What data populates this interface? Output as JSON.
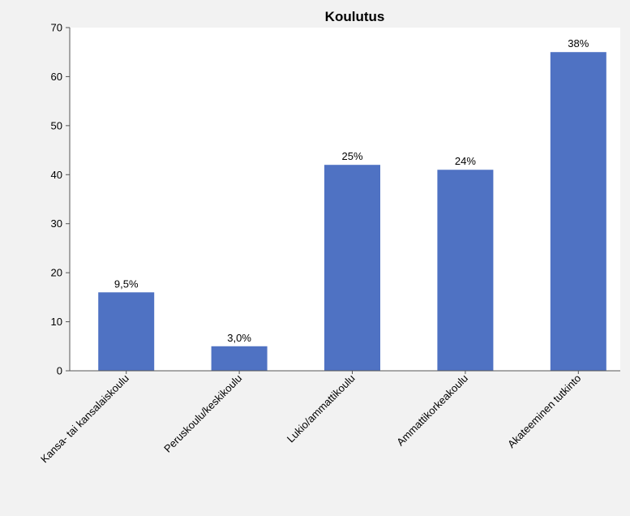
{
  "chart_data": {
    "type": "bar",
    "title": "Koulutus",
    "xlabel": "",
    "ylabel": "",
    "categories": [
      "Kansa- tai kansalaiskoulu",
      "Peruskoulu/keskikoulu",
      "Lukio/ammattikoulu",
      "Ammattikorkeakoulu",
      "Akateeminen tutkinto"
    ],
    "values": [
      16,
      5,
      42,
      41,
      65
    ],
    "data_labels": [
      "9,5%",
      "3,0%",
      "25%",
      "24%",
      "38%"
    ],
    "ylim": [
      0,
      70
    ],
    "yticks": [
      0,
      10,
      20,
      30,
      40,
      50,
      60,
      70
    ],
    "grid": false,
    "legend": "none",
    "bar_color": "#4f72c3",
    "background_color": "#f2f2f2",
    "plot_background_color": "#ffffff"
  }
}
